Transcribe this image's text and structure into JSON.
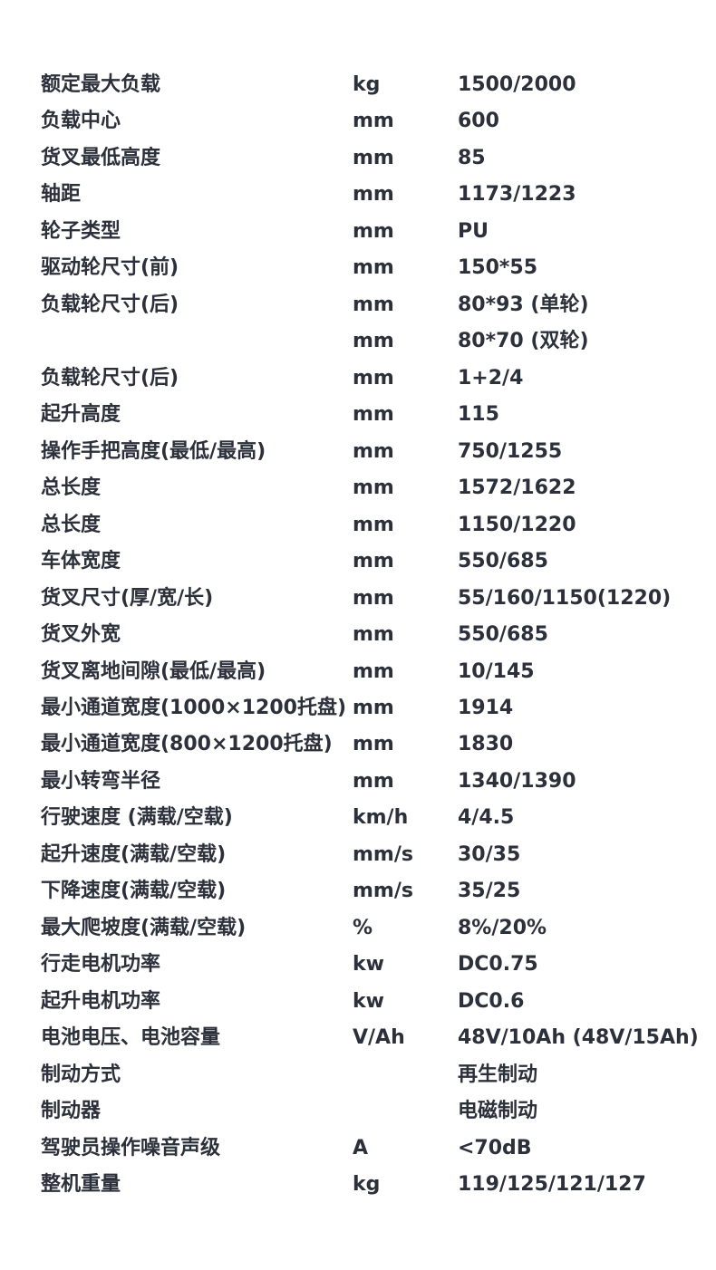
{
  "table": {
    "rows": [
      [
        "额定最大负载",
        "kg",
        "1500/2000"
      ],
      [
        "负载中心",
        "mm",
        "600"
      ],
      [
        "货叉最低高度",
        "mm",
        "85"
      ],
      [
        "轴距",
        "mm",
        "1173/1223"
      ],
      [
        "轮子类型",
        "mm",
        "PU"
      ],
      [
        "驱动轮尺寸(前)",
        "mm",
        "150*55"
      ],
      [
        "负载轮尺寸(后)",
        "mm",
        "80*93 (单轮)"
      ],
      [
        null,
        "mm",
        "80*70 (双轮)"
      ],
      [
        "负载轮尺寸(后)",
        "mm",
        "1+2/4"
      ],
      [
        "起升高度",
        "mm",
        "115"
      ],
      [
        "操作手把高度(最低/最高)",
        "mm",
        "750/1255"
      ],
      [
        "总长度",
        "mm",
        "1572/1622"
      ],
      [
        "总长度",
        "mm",
        "1150/1220"
      ],
      [
        "车体宽度",
        "mm",
        "550/685"
      ],
      [
        "货叉尺寸(厚/宽/长)",
        "mm",
        "55/160/1150(1220)"
      ],
      [
        "货叉外宽",
        "mm",
        "550/685"
      ],
      [
        "货叉离地间隙(最低/最高)",
        "mm",
        "10/145"
      ],
      [
        "最小通道宽度(1000×1200托盘)",
        "mm",
        "1914"
      ],
      [
        "最小通道宽度(800×1200托盘)",
        "mm",
        "1830"
      ],
      [
        "最小转弯半径",
        "mm",
        "1340/1390"
      ],
      [
        "行驶速度 (满载/空载)",
        "km/h",
        "4/4.5"
      ],
      [
        "起升速度(满载/空载)",
        "mm/s",
        "30/35"
      ],
      [
        "下降速度(满载/空载)",
        "mm/s",
        "35/25"
      ],
      [
        "最大爬坡度(满载/空载)",
        "%",
        "8%/20%"
      ],
      [
        "行走电机功率",
        "kw",
        "DC0.75"
      ],
      [
        "起升电机功率",
        "kw",
        "DC0.6"
      ],
      [
        "电池电压、电池容量",
        "V/Ah",
        "48V/10Ah (48V/15Ah)"
      ],
      [
        "制动方式",
        null,
        "再生制动"
      ],
      [
        "制动器",
        null,
        "电磁制动"
      ],
      [
        "驾驶员操作噪音声级",
        "A",
        "<70dB"
      ],
      [
        "整机重量",
        "kg",
        "119/125/121/127"
      ]
    ]
  }
}
